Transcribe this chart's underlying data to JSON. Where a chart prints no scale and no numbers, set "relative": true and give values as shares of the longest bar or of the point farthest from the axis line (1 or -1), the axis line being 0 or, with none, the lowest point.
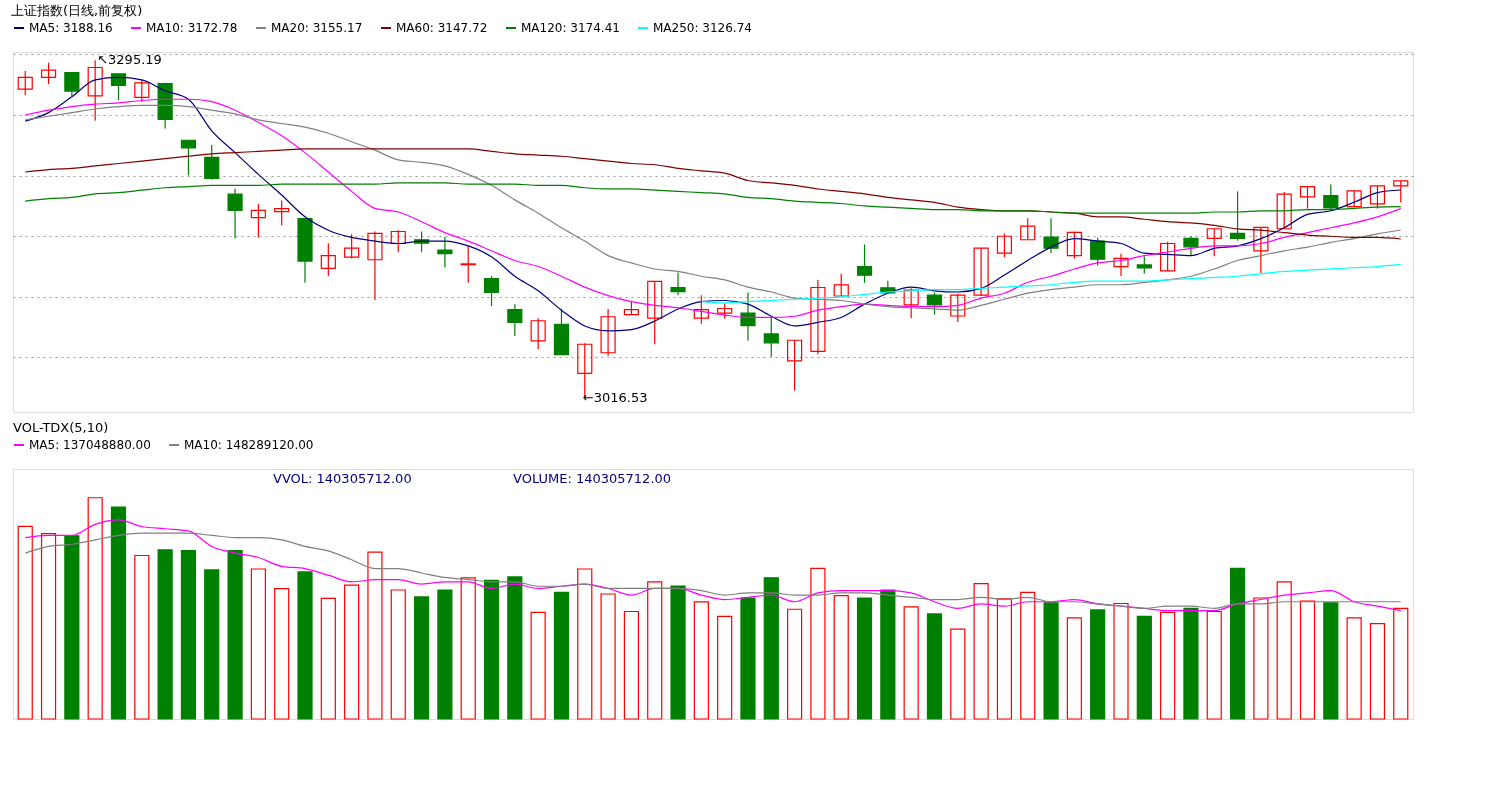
{
  "chart_data": [
    {
      "type": "candlestick",
      "title": "上证指数(日线,前复权)",
      "categories": [
        null,
        null,
        null,
        null,
        null,
        null,
        null,
        null,
        null,
        null,
        null,
        null,
        null,
        null,
        null,
        null,
        null,
        null,
        null,
        null,
        null,
        null,
        null,
        null,
        null,
        null,
        null,
        null,
        null,
        null,
        null,
        null,
        null,
        null,
        null,
        null,
        null,
        null,
        null,
        null,
        null,
        null,
        null,
        null,
        null,
        null,
        null,
        null,
        null,
        null,
        null,
        null,
        null,
        null,
        null,
        null,
        null,
        null,
        null,
        null
      ],
      "ohlc": [
        [
          3271.4,
          3286.3,
          3266.4,
          3281.0
        ],
        [
          3281.0,
          3293.2,
          3275.5,
          3287.0
        ],
        [
          3285.1,
          3285.1,
          3265.8,
          3269.7
        ],
        [
          3265.8,
          3295.19,
          3245.2,
          3289.2
        ],
        [
          3284.0,
          3284.0,
          3262.3,
          3274.5
        ],
        [
          3264.6,
          3278.8,
          3261.2,
          3276.5
        ],
        [
          3276.0,
          3276.7,
          3238.8,
          3246.4
        ],
        [
          3229.2,
          3229.2,
          3200.2,
          3222.8
        ],
        [
          3215.1,
          3225.3,
          3196.6,
          3197.7
        ],
        [
          3184.7,
          3189.2,
          3148.2,
          3171.4
        ],
        [
          3165.3,
          3176.7,
          3148.8,
          3171.4
        ],
        [
          3170.3,
          3179.5,
          3159.1,
          3172.8
        ],
        [
          3164.6,
          3165.3,
          3111.6,
          3129.5
        ],
        [
          3123.5,
          3144.3,
          3117.3,
          3134.0
        ],
        [
          3132.7,
          3151.6,
          3131.7,
          3140.2
        ],
        [
          3130.6,
          3153.9,
          3097.3,
          3152.3
        ],
        [
          3144.0,
          3155.0,
          3136.8,
          3153.9
        ],
        [
          3147.1,
          3153.9,
          3136.8,
          3144.3
        ],
        [
          3138.6,
          3149.3,
          3124.2,
          3135.6
        ],
        [
          3126.5,
          3142.5,
          3111.6,
          3127.2
        ],
        [
          3115.1,
          3117.3,
          3092.3,
          3103.6
        ],
        [
          3089.5,
          3093.8,
          3067.8,
          3079.0
        ],
        [
          3063.7,
          3082.4,
          3056.8,
          3080.3
        ],
        [
          3077.4,
          3090.0,
          3052.3,
          3052.3
        ],
        [
          3036.8,
          3061.8,
          3016.53,
          3060.9
        ],
        [
          3053.9,
          3090.0,
          3051.2,
          3083.6
        ],
        [
          3085.4,
          3096.8,
          3085.4,
          3089.5
        ],
        [
          3082.4,
          3112.8,
          3060.8,
          3112.8
        ],
        [
          3107.7,
          3120.1,
          3101.4,
          3104.3
        ],
        [
          3082.4,
          3101.4,
          3077.9,
          3089.5
        ],
        [
          3086.5,
          3094.5,
          3082.0,
          3090.4
        ],
        [
          3086.5,
          3103.6,
          3063.7,
          3076.2
        ],
        [
          3069.4,
          3084.2,
          3050.5,
          3062.1
        ],
        [
          3047.1,
          3064.2,
          3022.6,
          3064.2
        ],
        [
          3055.0,
          3113.9,
          3052.7,
          3107.7
        ],
        [
          3100.7,
          3119.0,
          3100.7,
          3109.8
        ],
        [
          3124.9,
          3143.2,
          3111.6,
          3117.8
        ],
        [
          3107.5,
          3113.2,
          3103.2,
          3103.2
        ],
        [
          3093.4,
          3107.1,
          3082.4,
          3105.5
        ],
        [
          3101.4,
          3103.6,
          3085.4,
          3093.4
        ],
        [
          3084.2,
          3102.5,
          3079.2,
          3101.4
        ],
        [
          3101.4,
          3140.2,
          3100.7,
          3140.2
        ],
        [
          3136.1,
          3152.3,
          3132.7,
          3150.0
        ],
        [
          3147.1,
          3164.9,
          3147.1,
          3158.4
        ],
        [
          3149.3,
          3164.9,
          3136.1,
          3140.2
        ],
        [
          3134.0,
          3153.9,
          3131.7,
          3153.2
        ],
        [
          3145.9,
          3148.8,
          3125.8,
          3131.0
        ],
        [
          3124.9,
          3135.6,
          3117.3,
          3131.7
        ],
        [
          3126.3,
          3133.4,
          3119.0,
          3123.8
        ],
        [
          3121.4,
          3145.4,
          3121.4,
          3144.0
        ],
        [
          3148.2,
          3150.0,
          3134.0,
          3141.3
        ],
        [
          3148.2,
          3156.2,
          3133.4,
          3156.2
        ],
        [
          3152.3,
          3187.0,
          3146.4,
          3148.2
        ],
        [
          3137.9,
          3157.3,
          3119.7,
          3157.3
        ],
        [
          3156.2,
          3186.5,
          3156.2,
          3184.7
        ],
        [
          3182.4,
          3191.6,
          3172.8,
          3190.9
        ],
        [
          3183.6,
          3192.7,
          3171.0,
          3173.3
        ],
        [
          3174.4,
          3187.5,
          3174.4,
          3187.5
        ],
        [
          3176.7,
          3191.6,
          3172.8,
          3191.6
        ],
        [
          3191.6,
          3195.7,
          3177.9,
          3195.7
        ]
      ],
      "colors": [
        "#ff0000",
        "#ff0000",
        "#008000",
        "#ff0000",
        "#008000",
        "#ff0000",
        "#008000",
        "#008000",
        "#008000",
        "#008000",
        "#ff0000",
        "#ff0000",
        "#008000",
        "#ff0000",
        "#ff0000",
        "#ff0000",
        "#ff0000",
        "#008000",
        "#008000",
        "#ff0000",
        "#008000",
        "#008000",
        "#ff0000",
        "#008000",
        "#ff0000",
        "#ff0000",
        "#ff0000",
        "#ff0000",
        "#008000",
        "#ff0000",
        "#ff0000",
        "#008000",
        "#008000",
        "#ff0000",
        "#ff0000",
        "#ff0000",
        "#008000",
        "#008000",
        "#ff0000",
        "#008000",
        "#ff0000",
        "#ff0000",
        "#ff0000",
        "#ff0000",
        "#008000",
        "#ff0000",
        "#008000",
        "#ff0000",
        "#008000",
        "#ff0000",
        "#008000",
        "#ff0000",
        "#008000",
        "#ff0000",
        "#ff0000",
        "#ff0000",
        "#008000",
        "#ff0000",
        "#ff0000",
        "#ff0000"
      ],
      "series": [
        {
          "type": "line",
          "name": "MA5: 3188.16",
          "color": "#000080",
          "values": [
            3245,
            3252,
            3265,
            3279,
            3281,
            3279,
            3270,
            3263,
            3237,
            3219,
            3201,
            3184,
            3166,
            3155,
            3149,
            3146,
            3144,
            3146,
            3146,
            3142,
            3133,
            3117,
            3105,
            3089,
            3076,
            3072,
            3073,
            3080,
            3090,
            3096,
            3097,
            3094,
            3084,
            3076,
            3079,
            3083,
            3094,
            3103,
            3108,
            3105,
            3104,
            3107,
            3118,
            3130,
            3141,
            3148,
            3146,
            3144,
            3136,
            3135,
            3134,
            3140,
            3142,
            3148,
            3157,
            3168,
            3171,
            3178,
            3186,
            3188.16
          ]
        },
        {
          "type": "line",
          "name": "MA10: 3172.78",
          "color": "#ff00ff",
          "values": [
            3250,
            3254,
            3257,
            3259,
            3260,
            3262,
            3263,
            3263,
            3261,
            3254,
            3244,
            3233,
            3219,
            3203,
            3187,
            3173,
            3170,
            3162,
            3153,
            3146,
            3138,
            3130,
            3125,
            3117,
            3108,
            3101,
            3096,
            3093,
            3091,
            3088,
            3085,
            3083,
            3083,
            3084,
            3089,
            3092,
            3094,
            3093,
            3092,
            3092,
            3093,
            3099,
            3103,
            3112,
            3117,
            3123,
            3128,
            3130,
            3134,
            3137,
            3140,
            3142,
            3142,
            3144,
            3149,
            3153,
            3157,
            3161,
            3166,
            3172.78
          ]
        },
        {
          "type": "line",
          "name": "MA20: 3155.17",
          "color": "#808080",
          "values": [
            3246,
            3249,
            3252,
            3255,
            3257,
            3258,
            3258,
            3257,
            3254,
            3251,
            3246,
            3243,
            3240,
            3235,
            3228,
            3221,
            3213,
            3211,
            3208,
            3201,
            3192,
            3180,
            3169,
            3157,
            3146,
            3134,
            3128,
            3123,
            3121,
            3117,
            3114,
            3108,
            3104,
            3099,
            3098,
            3097,
            3094,
            3092,
            3091,
            3090,
            3089,
            3093,
            3098,
            3103,
            3106,
            3108,
            3110,
            3110,
            3112,
            3114,
            3117,
            3123,
            3130,
            3134,
            3138,
            3141,
            3145,
            3148,
            3152,
            3155.17
          ]
        },
        {
          "type": "line",
          "name": "MA60: 3147.72",
          "color": "#800000",
          "values": [
            3203,
            3205,
            3206,
            3208,
            3210,
            3212,
            3214,
            3216,
            3218,
            3219,
            3220,
            3221,
            3222,
            3222,
            3222,
            3222,
            3222,
            3222,
            3222,
            3222,
            3220,
            3218,
            3217,
            3216,
            3214,
            3212,
            3210,
            3209,
            3206,
            3204,
            3202,
            3196,
            3194,
            3192,
            3189,
            3187,
            3185,
            3182,
            3180,
            3178,
            3174,
            3172,
            3171,
            3171,
            3170,
            3169,
            3166,
            3166,
            3164,
            3162,
            3161,
            3159,
            3156,
            3155,
            3153,
            3151,
            3150,
            3149,
            3149,
            3147.72
          ]
        },
        {
          "type": "line",
          "name": "MA120: 3174.41",
          "color": "#008000",
          "values": [
            3179,
            3181,
            3182,
            3185,
            3186,
            3188,
            3190,
            3191,
            3192,
            3192,
            3192,
            3193,
            3193,
            3193,
            3193,
            3193,
            3194,
            3194,
            3194,
            3193,
            3193,
            3193,
            3192,
            3192,
            3190,
            3189,
            3189,
            3188,
            3187,
            3186,
            3185,
            3182,
            3181,
            3179,
            3178,
            3177,
            3175,
            3174,
            3173,
            3172,
            3172,
            3171,
            3171,
            3171,
            3170,
            3169,
            3169,
            3169,
            3169,
            3169,
            3169,
            3170,
            3170,
            3171,
            3171,
            3172,
            3172,
            3173,
            3174,
            3174.41
          ]
        },
        {
          "type": "line",
          "name": "MA250: 3126.74",
          "color": "#00ffff",
          "values": [
            null,
            null,
            null,
            null,
            null,
            null,
            null,
            null,
            null,
            null,
            null,
            null,
            null,
            null,
            null,
            null,
            null,
            null,
            null,
            null,
            null,
            null,
            null,
            null,
            null,
            null,
            null,
            null,
            null,
            3096,
            3095,
            3096,
            3097,
            3098,
            3099,
            3100,
            3102,
            3104,
            3105,
            3106,
            3106,
            3107,
            3108,
            3109,
            3110,
            3112,
            3113,
            3113,
            3113,
            3114,
            3115,
            3116,
            3117,
            3119,
            3121,
            3122,
            3123,
            3124,
            3125,
            3126.74
          ]
        }
      ],
      "annotations": [
        "↖3295.19",
        "←3016.53"
      ],
      "ylim": [
        3005,
        3302
      ],
      "yticks": [
        {
          "value": 3050,
          "label": null
        },
        {
          "value": 3100,
          "label": null
        },
        {
          "value": 3150,
          "label": null
        },
        {
          "value": 3200,
          "label": null
        },
        {
          "value": 3250,
          "label": null
        },
        {
          "value": 3300,
          "label": null
        }
      ],
      "grid": "y",
      "legend": "top left",
      "marker": "none",
      "line_style": "solid"
    },
    {
      "type": "bar",
      "title": "VOL-TDX(5,10)",
      "relative": true,
      "categories": [
        null,
        null,
        null,
        null,
        null,
        null,
        null,
        null,
        null,
        null,
        null,
        null,
        null,
        null,
        null,
        null,
        null,
        null,
        null,
        null,
        null,
        null,
        null,
        null,
        null,
        null,
        null,
        null,
        null,
        null,
        null,
        null,
        null,
        null,
        null,
        null,
        null,
        null,
        null,
        null,
        null,
        null,
        null,
        null,
        null,
        null,
        null,
        null,
        null,
        null,
        null,
        null,
        null,
        null,
        null,
        null,
        null,
        null,
        null,
        null
      ],
      "series": [
        {
          "type": "bar",
          "colors": [
            "#ff0000",
            "#ff0000",
            "#008000",
            "#ff0000",
            "#008000",
            "#ff0000",
            "#008000",
            "#008000",
            "#008000",
            "#008000",
            "#ff0000",
            "#ff0000",
            "#008000",
            "#ff0000",
            "#ff0000",
            "#ff0000",
            "#ff0000",
            "#008000",
            "#008000",
            "#ff0000",
            "#008000",
            "#008000",
            "#ff0000",
            "#008000",
            "#ff0000",
            "#ff0000",
            "#ff0000",
            "#ff0000",
            "#008000",
            "#ff0000",
            "#ff0000",
            "#008000",
            "#008000",
            "#ff0000",
            "#ff0000",
            "#ff0000",
            "#008000",
            "#008000",
            "#ff0000",
            "#008000",
            "#ff0000",
            "#ff0000",
            "#ff0000",
            "#ff0000",
            "#008000",
            "#ff0000",
            "#008000",
            "#ff0000",
            "#008000",
            "#ff0000",
            "#008000",
            "#ff0000",
            "#008000",
            "#ff0000",
            "#ff0000",
            "#ff0000",
            "#008000",
            "#ff0000",
            "#ff0000",
            "#ff0000"
          ],
          "values": [
            0.871,
            0.838,
            0.828,
            1,
            0.958,
            0.739,
            0.764,
            0.761,
            0.674,
            0.761,
            0.678,
            0.589,
            0.665,
            0.545,
            0.605,
            0.754,
            0.583,
            0.552,
            0.583,
            0.638,
            0.627,
            0.642,
            0.482,
            0.572,
            0.678,
            0.565,
            0.486,
            0.62,
            0.601,
            0.529,
            0.464,
            0.547,
            0.638,
            0.496,
            0.681,
            0.558,
            0.547,
            0.583,
            0.507,
            0.475,
            0.406,
            0.612,
            0.543,
            0.572,
            0.525,
            0.457,
            0.493,
            0.522,
            0.464,
            0.482,
            0.5,
            0.486,
            0.681,
            0.547,
            0.62,
            0.533,
            0.525,
            0.457,
            0.431,
            0.5
          ]
        },
        {
          "type": "line",
          "name": "MA5: 137048880.00",
          "color": "#ff00ff",
          "values": [
            0.82,
            0.83,
            0.83,
            0.88,
            0.9,
            0.87,
            0.86,
            0.85,
            0.78,
            0.75,
            0.73,
            0.69,
            0.68,
            0.65,
            0.62,
            0.63,
            0.63,
            0.61,
            0.62,
            0.62,
            0.59,
            0.61,
            0.59,
            0.6,
            0.61,
            0.59,
            0.56,
            0.59,
            0.59,
            0.56,
            0.54,
            0.55,
            0.56,
            0.53,
            0.57,
            0.58,
            0.58,
            0.58,
            0.57,
            0.53,
            0.5,
            0.52,
            0.51,
            0.53,
            0.53,
            0.54,
            0.52,
            0.51,
            0.5,
            0.49,
            0.49,
            0.49,
            0.52,
            0.54,
            0.56,
            0.57,
            0.58,
            0.53,
            0.51,
            0.49
          ]
        },
        {
          "type": "line",
          "name": "MA10: 148289120.00",
          "color": "#808080",
          "values": [
            0.75,
            0.78,
            0.79,
            0.81,
            0.83,
            0.84,
            0.84,
            0.84,
            0.83,
            0.82,
            0.82,
            0.81,
            0.78,
            0.76,
            0.72,
            0.68,
            0.68,
            0.66,
            0.64,
            0.63,
            0.62,
            0.62,
            0.6,
            0.6,
            0.61,
            0.59,
            0.59,
            0.59,
            0.59,
            0.58,
            0.56,
            0.57,
            0.57,
            0.56,
            0.56,
            0.57,
            0.57,
            0.56,
            0.55,
            0.54,
            0.54,
            0.55,
            0.54,
            0.55,
            0.53,
            0.53,
            0.52,
            0.51,
            0.5,
            0.51,
            0.51,
            0.5,
            0.52,
            0.52,
            0.53,
            0.53,
            0.53,
            0.53,
            0.53,
            0.53
          ]
        }
      ],
      "annotations": [
        "VVOL: 140305712.00",
        "VOLUME: 140305712.00"
      ],
      "legend": "top left",
      "marker": "none",
      "line_style": "solid"
    }
  ]
}
